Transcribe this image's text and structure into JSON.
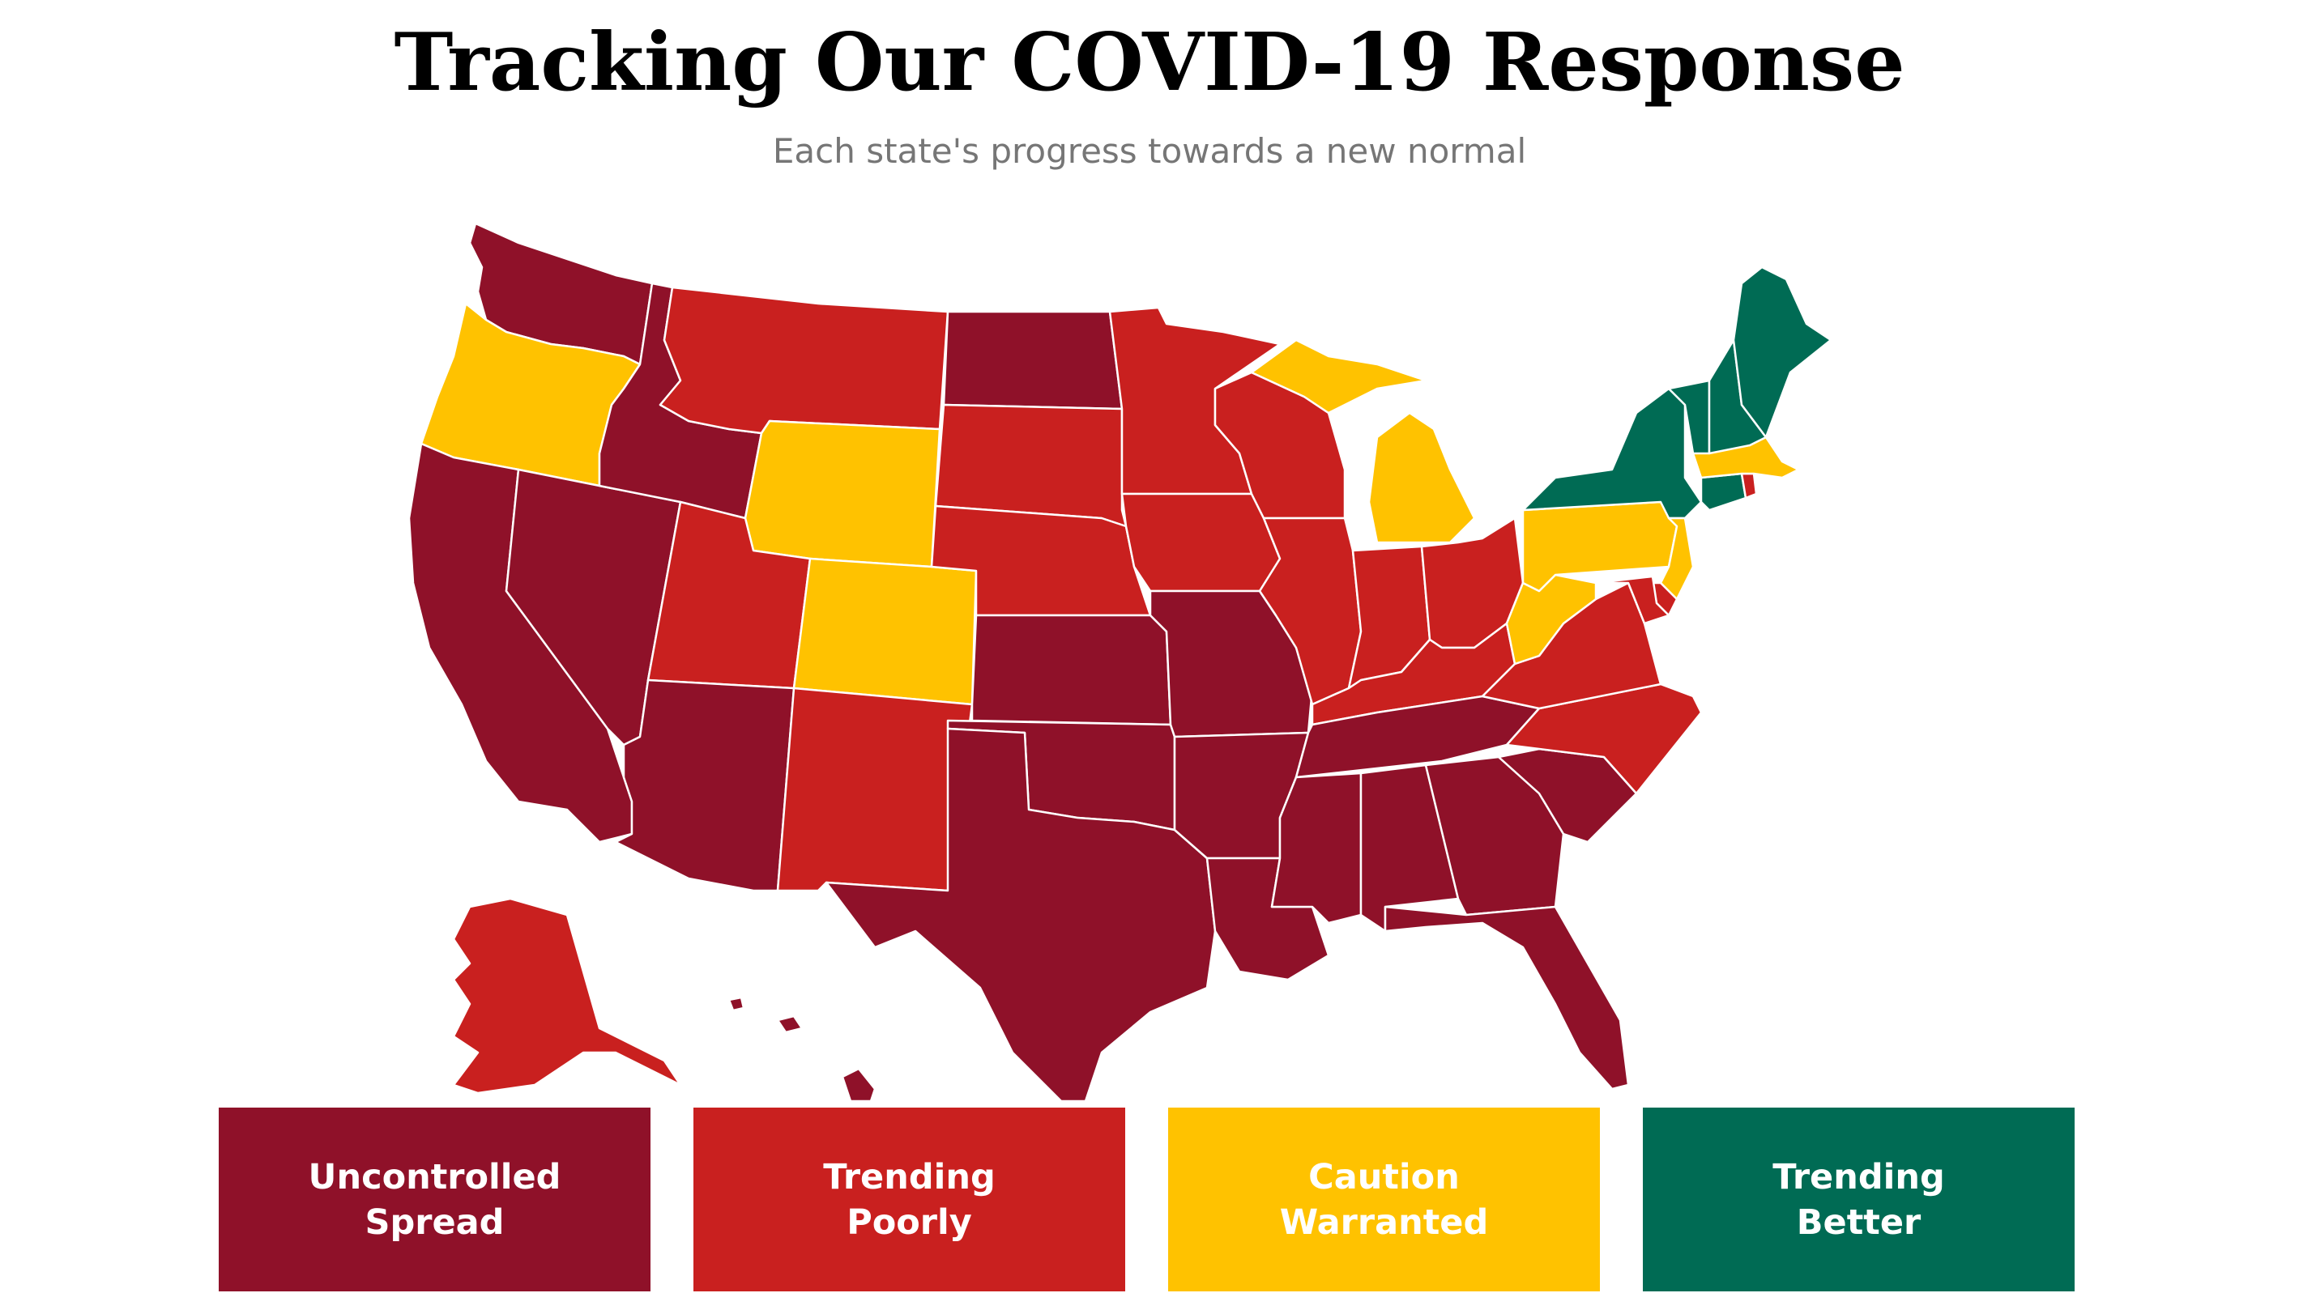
{
  "header": {
    "title": "Tracking Our COVID-19 Response",
    "subtitle": "Each state's progress towards a new normal"
  },
  "colors": {
    "uncontrolled_spread": "#8f1129",
    "trending_poorly": "#c9201f",
    "caution_warranted": "#ffc200",
    "trending_better": "#006b54"
  },
  "legend": [
    {
      "line1": "Uncontrolled",
      "line2": "Spread",
      "color": "#8f1129"
    },
    {
      "line1": "Trending",
      "line2": "Poorly",
      "color": "#c9201f"
    },
    {
      "line1": "Caution",
      "line2": "Warranted",
      "color": "#ffc200"
    },
    {
      "line1": "Trending",
      "line2": "Better",
      "color": "#006b54"
    }
  ],
  "map_data": {
    "states": {
      "WA": "uncontrolled_spread",
      "OR": "caution_warranted",
      "CA": "uncontrolled_spread",
      "NV": "uncontrolled_spread",
      "ID": "uncontrolled_spread",
      "MT": "trending_poorly",
      "WY": "caution_warranted",
      "UT": "trending_poorly",
      "CO": "caution_warranted",
      "AZ": "uncontrolled_spread",
      "NM": "trending_poorly",
      "ND": "uncontrolled_spread",
      "SD": "trending_poorly",
      "NE": "trending_poorly",
      "KS": "uncontrolled_spread",
      "OK": "uncontrolled_spread",
      "TX": "uncontrolled_spread",
      "MN": "trending_poorly",
      "IA": "trending_poorly",
      "MO": "uncontrolled_spread",
      "AR": "uncontrolled_spread",
      "LA": "uncontrolled_spread",
      "WI": "trending_poorly",
      "IL": "trending_poorly",
      "MI": "caution_warranted",
      "IN": "trending_poorly",
      "OH": "trending_poorly",
      "KY": "trending_poorly",
      "TN": "uncontrolled_spread",
      "MS": "uncontrolled_spread",
      "AL": "uncontrolled_spread",
      "GA": "uncontrolled_spread",
      "FL": "uncontrolled_spread",
      "SC": "uncontrolled_spread",
      "NC": "trending_poorly",
      "VA": "trending_poorly",
      "WV": "caution_warranted",
      "PA": "caution_warranted",
      "NY": "trending_better",
      "NJ": "caution_warranted",
      "DE": "trending_poorly",
      "MD": "trending_poorly",
      "CT": "trending_better",
      "RI": "trending_poorly",
      "MA": "caution_warranted",
      "VT": "trending_better",
      "NH": "trending_better",
      "ME": "trending_better",
      "AK": "trending_poorly",
      "HI": "uncontrolled_spread"
    }
  }
}
